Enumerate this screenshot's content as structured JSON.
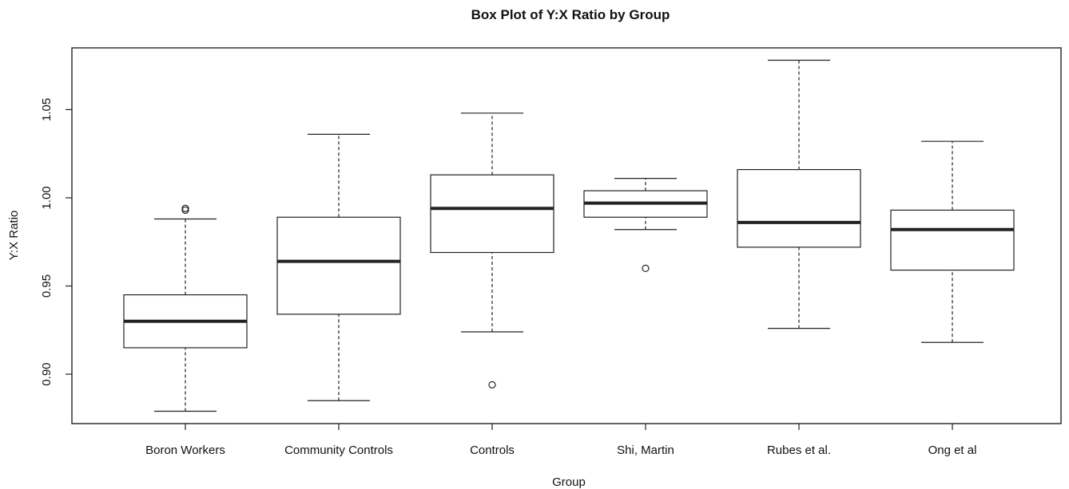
{
  "chart_data": {
    "type": "box",
    "title": "Box Plot of Y:X Ratio by Group",
    "xlabel": "Group",
    "ylabel": "Y:X Ratio",
    "ylim": [
      0.872,
      1.085
    ],
    "yticks": [
      0.9,
      0.95,
      1.0,
      1.05
    ],
    "ytick_labels": [
      "0.90",
      "0.95",
      "1.00",
      "1.05"
    ],
    "grid": false,
    "categories": [
      "Boron Workers",
      "Community Controls",
      "Controls",
      "Shi, Martin",
      "Rubes et al.",
      "Ong et al"
    ],
    "boxes": [
      {
        "group": "Boron Workers",
        "whisker_low": 0.879,
        "q1": 0.915,
        "median": 0.93,
        "q3": 0.945,
        "whisker_high": 0.988,
        "outliers": [
          0.993,
          0.994
        ]
      },
      {
        "group": "Community Controls",
        "whisker_low": 0.885,
        "q1": 0.934,
        "median": 0.964,
        "q3": 0.989,
        "whisker_high": 1.036,
        "outliers": []
      },
      {
        "group": "Controls",
        "whisker_low": 0.924,
        "q1": 0.969,
        "median": 0.994,
        "q3": 1.013,
        "whisker_high": 1.048,
        "outliers": [
          0.894
        ]
      },
      {
        "group": "Shi, Martin",
        "whisker_low": 0.982,
        "q1": 0.989,
        "median": 0.997,
        "q3": 1.004,
        "whisker_high": 1.011,
        "outliers": [
          0.96
        ]
      },
      {
        "group": "Rubes et al.",
        "whisker_low": 0.926,
        "q1": 0.972,
        "median": 0.986,
        "q3": 1.016,
        "whisker_high": 1.078,
        "outliers": []
      },
      {
        "group": "Ong et al",
        "whisker_low": 0.918,
        "q1": 0.959,
        "median": 0.982,
        "q3": 0.993,
        "whisker_high": 1.032,
        "outliers": []
      }
    ],
    "colors": {
      "box_fill": "#ffffff",
      "box_stroke": "#222222",
      "median_stroke": "#222222",
      "axis_stroke": "#222222",
      "text": "#111111"
    }
  }
}
